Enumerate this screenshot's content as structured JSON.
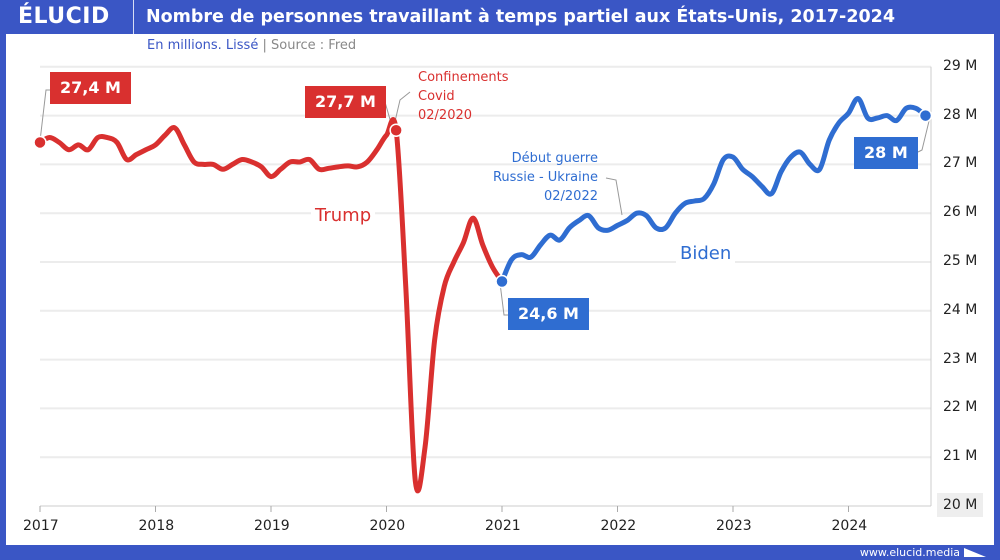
{
  "header": {
    "logo": "ÉLUCID",
    "title": "Nombre de personnes travaillant à temps partiel aux États-Unis, 2017-2024"
  },
  "subtitle": {
    "unit": "En millions. Lissé",
    "separator": "|",
    "source": "Source : Fred"
  },
  "footer": {
    "url": "www.elucid.media"
  },
  "colors": {
    "brand": "#3a56c5",
    "trump": "#d9302f",
    "biden": "#2f6dd1"
  },
  "chart_data": {
    "type": "line",
    "title": "Nombre de personnes travaillant à temps partiel aux États-Unis, 2017-2024",
    "ylabel": "",
    "xlabel": "",
    "ylim": [
      20,
      29
    ],
    "y_ticks": [
      "29 M",
      "28 M",
      "27 M",
      "26 M",
      "25 M",
      "24 M",
      "23 M",
      "22 M",
      "21 M",
      "20 M"
    ],
    "x_ticks": [
      "2017",
      "2018",
      "2019",
      "2020",
      "2021",
      "2022",
      "2023",
      "2024"
    ],
    "grid": true,
    "axis_position": "right",
    "series": [
      {
        "name": "Trump",
        "color": "#d9302f",
        "x": [
          "2017-01",
          "2017-02",
          "2017-03",
          "2017-04",
          "2017-05",
          "2017-06",
          "2017-07",
          "2017-08",
          "2017-09",
          "2017-10",
          "2017-11",
          "2017-12",
          "2018-01",
          "2018-02",
          "2018-03",
          "2018-04",
          "2018-05",
          "2018-06",
          "2018-07",
          "2018-08",
          "2018-09",
          "2018-10",
          "2018-11",
          "2018-12",
          "2019-01",
          "2019-02",
          "2019-03",
          "2019-04",
          "2019-05",
          "2019-06",
          "2019-07",
          "2019-08",
          "2019-09",
          "2019-10",
          "2019-11",
          "2019-12",
          "2020-01",
          "2020-02",
          "2020-03",
          "2020-04",
          "2020-05",
          "2020-06",
          "2020-07",
          "2020-08",
          "2020-09",
          "2020-10",
          "2020-11",
          "2020-12",
          "2021-01"
        ],
        "values": [
          27.45,
          27.55,
          27.45,
          27.3,
          27.4,
          27.3,
          27.55,
          27.55,
          27.45,
          27.1,
          27.2,
          27.3,
          27.4,
          27.6,
          27.75,
          27.4,
          27.05,
          27.0,
          27.0,
          26.9,
          27.0,
          27.1,
          27.05,
          26.95,
          26.75,
          26.9,
          27.05,
          27.05,
          27.1,
          26.9,
          26.92,
          26.95,
          26.97,
          26.95,
          27.05,
          27.3,
          27.6,
          27.7,
          24.5,
          20.5,
          21.2,
          23.4,
          24.5,
          25.0,
          25.4,
          25.9,
          25.35,
          24.9,
          24.6
        ]
      },
      {
        "name": "Biden",
        "color": "#2f6dd1",
        "x": [
          "2021-01",
          "2021-02",
          "2021-03",
          "2021-04",
          "2021-05",
          "2021-06",
          "2021-07",
          "2021-08",
          "2021-09",
          "2021-10",
          "2021-11",
          "2021-12",
          "2022-01",
          "2022-02",
          "2022-03",
          "2022-04",
          "2022-05",
          "2022-06",
          "2022-07",
          "2022-08",
          "2022-09",
          "2022-10",
          "2022-11",
          "2022-12",
          "2023-01",
          "2023-02",
          "2023-03",
          "2023-04",
          "2023-05",
          "2023-06",
          "2023-07",
          "2023-08",
          "2023-09",
          "2023-10",
          "2023-11",
          "2023-12",
          "2024-01",
          "2024-02",
          "2024-03",
          "2024-04",
          "2024-05",
          "2024-06",
          "2024-07",
          "2024-08",
          "2024-09"
        ],
        "values": [
          24.6,
          25.05,
          25.15,
          25.1,
          25.35,
          25.55,
          25.45,
          25.7,
          25.85,
          25.95,
          25.7,
          25.65,
          25.75,
          25.85,
          26.0,
          25.95,
          25.7,
          25.7,
          26.0,
          26.2,
          26.25,
          26.3,
          26.6,
          27.1,
          27.15,
          26.9,
          26.75,
          26.55,
          26.4,
          26.85,
          27.15,
          27.25,
          27.0,
          26.9,
          27.5,
          27.85,
          28.05,
          28.35,
          27.95,
          27.95,
          28.0,
          27.9,
          28.15,
          28.15,
          28.0
        ]
      }
    ],
    "annotations": {
      "start": "27,4 M",
      "covid_value": "27,7 M",
      "covid_text": [
        "Confinements",
        "Covid",
        "02/2020"
      ],
      "biden_start": "24,6 M",
      "war_text": [
        "Début guerre",
        "Russie - Ukraine",
        "02/2022"
      ],
      "end": "28 M",
      "trump_label": "Trump",
      "biden_label": "Biden"
    }
  }
}
